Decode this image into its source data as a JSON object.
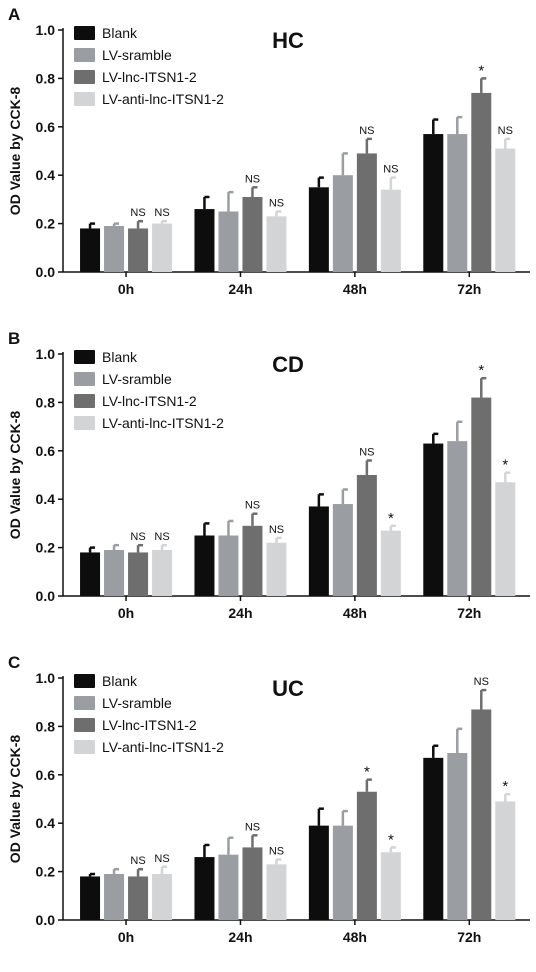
{
  "legend_labels": [
    "Blank",
    "LV-sramble",
    "LV-lnc-ITSN1-2",
    "LV-anti-lnc-ITSN1-2"
  ],
  "colors": {
    "Blank": "#0d0d0d",
    "LV-sramble": "#9a9da2",
    "LV-lnc-ITSN1-2": "#6e6e6e",
    "LV-anti-lnc-ITSN1-2": "#d2d4d6"
  },
  "chart_data": [
    {
      "type": "bar",
      "panel_label": "A",
      "title": "HC",
      "ylabel": "OD Value by CCK-8",
      "xlabel": "",
      "ylim": [
        0,
        1.0
      ],
      "yticks": [
        "0.0",
        "0.2",
        "0.4",
        "0.6",
        "0.8",
        "1.0"
      ],
      "categories": [
        "0h",
        "24h",
        "48h",
        "72h"
      ],
      "legend_position": "top-left",
      "series": [
        {
          "name": "Blank",
          "values": [
            0.18,
            0.26,
            0.35,
            0.57
          ],
          "errors": [
            0.02,
            0.05,
            0.04,
            0.06
          ],
          "annotations": [
            "",
            "",
            "",
            ""
          ]
        },
        {
          "name": "LV-sramble",
          "values": [
            0.19,
            0.25,
            0.4,
            0.57
          ],
          "errors": [
            0.01,
            0.08,
            0.09,
            0.07
          ],
          "annotations": [
            "",
            "",
            "",
            ""
          ]
        },
        {
          "name": "LV-lnc-ITSN1-2",
          "values": [
            0.18,
            0.31,
            0.49,
            0.74
          ],
          "errors": [
            0.03,
            0.04,
            0.06,
            0.06
          ],
          "annotations": [
            "NS",
            "NS",
            "NS",
            "*"
          ]
        },
        {
          "name": "LV-anti-lnc-ITSN1-2",
          "values": [
            0.2,
            0.23,
            0.34,
            0.51
          ],
          "errors": [
            0.01,
            0.02,
            0.05,
            0.04
          ],
          "annotations": [
            "NS",
            "NS",
            "NS",
            "NS"
          ]
        }
      ]
    },
    {
      "type": "bar",
      "panel_label": "B",
      "title": "CD",
      "ylabel": "OD Value by CCK-8",
      "xlabel": "",
      "ylim": [
        0,
        1.0
      ],
      "yticks": [
        "0.0",
        "0.2",
        "0.4",
        "0.6",
        "0.8",
        "1.0"
      ],
      "categories": [
        "0h",
        "24h",
        "48h",
        "72h"
      ],
      "legend_position": "top-left",
      "series": [
        {
          "name": "Blank",
          "values": [
            0.18,
            0.25,
            0.37,
            0.63
          ],
          "errors": [
            0.02,
            0.05,
            0.05,
            0.04
          ],
          "annotations": [
            "",
            "",
            "",
            ""
          ]
        },
        {
          "name": "LV-sramble",
          "values": [
            0.19,
            0.25,
            0.38,
            0.64
          ],
          "errors": [
            0.02,
            0.06,
            0.06,
            0.08
          ],
          "annotations": [
            "",
            "",
            "",
            ""
          ]
        },
        {
          "name": "LV-lnc-ITSN1-2",
          "values": [
            0.18,
            0.29,
            0.5,
            0.82
          ],
          "errors": [
            0.03,
            0.05,
            0.06,
            0.08
          ],
          "annotations": [
            "NS",
            "NS",
            "NS",
            "*"
          ]
        },
        {
          "name": "LV-anti-lnc-ITSN1-2",
          "values": [
            0.19,
            0.22,
            0.27,
            0.47
          ],
          "errors": [
            0.02,
            0.02,
            0.02,
            0.04
          ],
          "annotations": [
            "NS",
            "NS",
            "*",
            "*"
          ]
        }
      ]
    },
    {
      "type": "bar",
      "panel_label": "C",
      "title": "UC",
      "ylabel": "OD Value by CCK-8",
      "xlabel": "",
      "ylim": [
        0,
        1.0
      ],
      "yticks": [
        "0.0",
        "0.2",
        "0.4",
        "0.6",
        "0.8",
        "1.0"
      ],
      "categories": [
        "0h",
        "24h",
        "48h",
        "72h"
      ],
      "legend_position": "top-left",
      "series": [
        {
          "name": "Blank",
          "values": [
            0.18,
            0.26,
            0.39,
            0.67
          ],
          "errors": [
            0.01,
            0.05,
            0.07,
            0.05
          ],
          "annotations": [
            "",
            "",
            "",
            ""
          ]
        },
        {
          "name": "LV-sramble",
          "values": [
            0.19,
            0.27,
            0.39,
            0.69
          ],
          "errors": [
            0.02,
            0.07,
            0.06,
            0.1
          ],
          "annotations": [
            "",
            "",
            "",
            ""
          ]
        },
        {
          "name": "LV-lnc-ITSN1-2",
          "values": [
            0.18,
            0.3,
            0.53,
            0.87
          ],
          "errors": [
            0.03,
            0.05,
            0.05,
            0.08
          ],
          "annotations": [
            "NS",
            "NS",
            "*",
            "NS"
          ]
        },
        {
          "name": "LV-anti-lnc-ITSN1-2",
          "values": [
            0.19,
            0.23,
            0.28,
            0.49
          ],
          "errors": [
            0.03,
            0.02,
            0.02,
            0.03
          ],
          "annotations": [
            "NS",
            "NS",
            "*",
            "*"
          ]
        }
      ]
    }
  ]
}
